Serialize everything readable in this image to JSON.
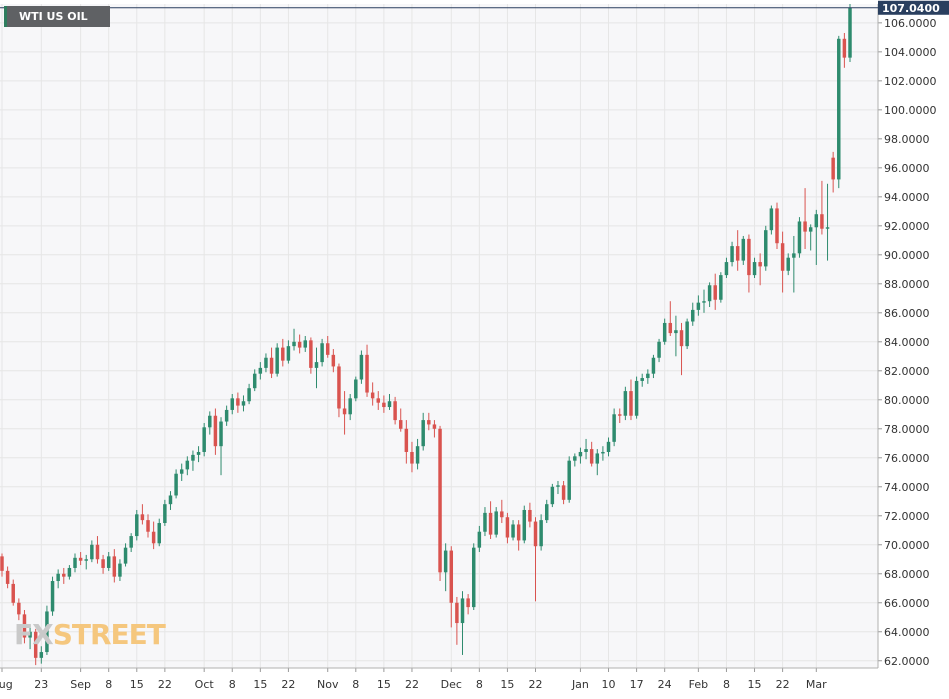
{
  "symbol": "WTI US OIL",
  "logo": {
    "fx": "FX",
    "street": "STREET",
    "text": "FXSTREET"
  },
  "colors": {
    "up": "#2e8b6e",
    "down": "#d9534f",
    "grid": "#e6e6e6",
    "plot_bg": "#f7f7f9",
    "last_price_bg": "#2a3f5f",
    "axis_text": "#333333"
  },
  "chart_data": {
    "type": "candlestick",
    "title": "WTI US OIL",
    "y_axis": {
      "min": 61.5,
      "max": 107.3,
      "ticks": [
        "62.0000",
        "64.0000",
        "66.0000",
        "68.0000",
        "70.0000",
        "72.0000",
        "74.0000",
        "76.0000",
        "78.0000",
        "80.0000",
        "82.0000",
        "84.0000",
        "86.0000",
        "88.0000",
        "90.0000",
        "92.0000",
        "94.0000",
        "96.0000",
        "98.0000",
        "100.0000",
        "102.0000",
        "104.0000",
        "106.0000"
      ]
    },
    "x_labels": [
      {
        "label": "Aug",
        "i": 0
      },
      {
        "label": "23",
        "i": 7
      },
      {
        "label": "Sep",
        "i": 14
      },
      {
        "label": "8",
        "i": 19
      },
      {
        "label": "15",
        "i": 24
      },
      {
        "label": "22",
        "i": 29
      },
      {
        "label": "Oct",
        "i": 36
      },
      {
        "label": "8",
        "i": 41
      },
      {
        "label": "15",
        "i": 46
      },
      {
        "label": "22",
        "i": 51
      },
      {
        "label": "Nov",
        "i": 58
      },
      {
        "label": "8",
        "i": 63
      },
      {
        "label": "15",
        "i": 68
      },
      {
        "label": "22",
        "i": 73
      },
      {
        "label": "Dec",
        "i": 80
      },
      {
        "label": "8",
        "i": 85
      },
      {
        "label": "15",
        "i": 90
      },
      {
        "label": "22",
        "i": 95
      },
      {
        "label": "Jan",
        "i": 103
      },
      {
        "label": "10",
        "i": 108
      },
      {
        "label": "17",
        "i": 113
      },
      {
        "label": "24",
        "i": 118
      },
      {
        "label": "Feb",
        "i": 124
      },
      {
        "label": "8",
        "i": 129
      },
      {
        "label": "15",
        "i": 134
      },
      {
        "label": "22",
        "i": 139
      },
      {
        "label": "Mar",
        "i": 145
      }
    ],
    "last_price": "107.0400",
    "last_value": 107.04,
    "grid": true,
    "candles": [
      [
        69.2,
        69.4,
        67.8,
        68.2
      ],
      [
        68.2,
        68.5,
        67.0,
        67.3
      ],
      [
        67.3,
        67.6,
        65.8,
        66.0
      ],
      [
        66.0,
        66.3,
        64.8,
        65.2
      ],
      [
        65.2,
        65.5,
        63.2,
        63.6
      ],
      [
        63.6,
        64.5,
        62.8,
        64.0
      ],
      [
        64.0,
        64.2,
        61.7,
        62.2
      ],
      [
        62.2,
        63.0,
        61.8,
        62.6
      ],
      [
        62.6,
        65.8,
        62.4,
        65.4
      ],
      [
        65.4,
        67.8,
        65.1,
        67.5
      ],
      [
        67.5,
        68.3,
        67.0,
        68.0
      ],
      [
        68.0,
        68.4,
        67.3,
        67.8
      ],
      [
        67.8,
        68.6,
        67.6,
        68.4
      ],
      [
        68.4,
        69.4,
        68.1,
        69.1
      ],
      [
        69.1,
        69.5,
        68.6,
        68.9
      ],
      [
        68.9,
        69.3,
        68.3,
        69.0
      ],
      [
        69.0,
        70.3,
        68.8,
        70.0
      ],
      [
        70.0,
        70.6,
        68.7,
        69.0
      ],
      [
        69.0,
        69.3,
        68.0,
        68.4
      ],
      [
        68.4,
        69.5,
        68.2,
        69.2
      ],
      [
        69.2,
        69.7,
        67.4,
        67.8
      ],
      [
        67.8,
        69.0,
        67.5,
        68.7
      ],
      [
        68.7,
        70.1,
        68.5,
        69.8
      ],
      [
        69.8,
        70.8,
        69.5,
        70.6
      ],
      [
        70.6,
        72.4,
        70.3,
        72.1
      ],
      [
        72.1,
        72.8,
        71.4,
        71.7
      ],
      [
        71.7,
        72.1,
        70.5,
        70.9
      ],
      [
        70.9,
        71.6,
        69.7,
        70.1
      ],
      [
        70.1,
        71.8,
        69.9,
        71.5
      ],
      [
        71.5,
        73.1,
        71.3,
        72.8
      ],
      [
        72.8,
        73.7,
        72.4,
        73.4
      ],
      [
        73.4,
        75.2,
        73.2,
        74.9
      ],
      [
        74.9,
        75.6,
        74.4,
        75.2
      ],
      [
        75.2,
        76.1,
        74.8,
        75.8
      ],
      [
        75.8,
        76.5,
        75.1,
        76.2
      ],
      [
        76.2,
        76.8,
        75.7,
        76.4
      ],
      [
        76.4,
        78.4,
        76.1,
        78.1
      ],
      [
        78.1,
        79.2,
        77.6,
        78.9
      ],
      [
        78.9,
        79.4,
        76.2,
        76.8
      ],
      [
        76.8,
        78.8,
        74.8,
        78.5
      ],
      [
        78.5,
        79.6,
        78.2,
        79.3
      ],
      [
        79.3,
        80.4,
        79.0,
        80.1
      ],
      [
        80.1,
        80.5,
        79.1,
        79.6
      ],
      [
        79.6,
        80.3,
        79.2,
        79.9
      ],
      [
        79.9,
        81.1,
        79.7,
        80.8
      ],
      [
        80.8,
        82.1,
        80.6,
        81.8
      ],
      [
        81.8,
        82.6,
        81.4,
        82.2
      ],
      [
        82.2,
        83.2,
        81.9,
        82.9
      ],
      [
        82.9,
        83.6,
        81.5,
        81.8
      ],
      [
        81.8,
        83.9,
        81.6,
        83.6
      ],
      [
        83.6,
        84.2,
        82.3,
        82.7
      ],
      [
        82.7,
        84.1,
        82.5,
        83.7
      ],
      [
        83.7,
        84.9,
        83.4,
        84.0
      ],
      [
        84.0,
        84.5,
        83.2,
        83.6
      ],
      [
        83.6,
        84.4,
        83.3,
        84.1
      ],
      [
        84.1,
        84.3,
        81.8,
        82.2
      ],
      [
        82.2,
        83.6,
        80.8,
        82.6
      ],
      [
        82.6,
        84.2,
        82.3,
        83.9
      ],
      [
        83.9,
        84.4,
        82.9,
        83.1
      ],
      [
        83.1,
        83.5,
        81.9,
        82.3
      ],
      [
        82.3,
        82.5,
        78.8,
        79.4
      ],
      [
        79.4,
        80.6,
        77.6,
        79.0
      ],
      [
        79.0,
        80.4,
        78.6,
        80.1
      ],
      [
        80.1,
        81.6,
        79.9,
        81.4
      ],
      [
        81.4,
        83.4,
        81.1,
        83.1
      ],
      [
        83.1,
        83.8,
        80.2,
        80.5
      ],
      [
        80.5,
        81.2,
        79.6,
        80.1
      ],
      [
        80.1,
        80.6,
        79.3,
        79.8
      ],
      [
        79.8,
        80.3,
        79.1,
        79.5
      ],
      [
        79.5,
        80.4,
        79.3,
        79.9
      ],
      [
        79.9,
        80.2,
        78.3,
        78.6
      ],
      [
        78.6,
        79.4,
        77.8,
        78.0
      ],
      [
        78.0,
        78.6,
        75.6,
        76.4
      ],
      [
        76.4,
        77.1,
        75.0,
        75.6
      ],
      [
        75.6,
        77.3,
        75.2,
        76.8
      ],
      [
        76.8,
        79.1,
        76.5,
        78.6
      ],
      [
        78.6,
        79.1,
        77.9,
        78.3
      ],
      [
        78.3,
        78.6,
        77.4,
        78.0
      ],
      [
        78.0,
        78.2,
        67.5,
        68.1
      ],
      [
        68.1,
        70.1,
        66.8,
        69.6
      ],
      [
        69.6,
        69.9,
        64.3,
        66.0
      ],
      [
        66.0,
        66.4,
        63.1,
        64.6
      ],
      [
        64.6,
        66.8,
        62.4,
        66.3
      ],
      [
        66.3,
        66.6,
        65.2,
        65.7
      ],
      [
        65.7,
        70.1,
        65.5,
        69.8
      ],
      [
        69.8,
        71.3,
        69.5,
        70.9
      ],
      [
        70.9,
        72.6,
        70.6,
        72.2
      ],
      [
        72.2,
        73.0,
        70.4,
        70.7
      ],
      [
        70.7,
        72.6,
        70.5,
        72.3
      ],
      [
        72.3,
        73.1,
        71.5,
        71.9
      ],
      [
        71.9,
        72.2,
        70.1,
        70.5
      ],
      [
        70.5,
        71.7,
        70.3,
        71.4
      ],
      [
        71.4,
        71.7,
        69.6,
        70.3
      ],
      [
        70.3,
        72.7,
        70.1,
        72.4
      ],
      [
        72.4,
        72.9,
        71.2,
        71.6
      ],
      [
        71.6,
        71.9,
        66.1,
        69.9
      ],
      [
        69.9,
        72.1,
        69.6,
        71.7
      ],
      [
        71.7,
        73.1,
        71.5,
        72.8
      ],
      [
        72.8,
        74.2,
        72.6,
        74.0
      ],
      [
        74.0,
        74.4,
        73.5,
        74.1
      ],
      [
        74.1,
        74.4,
        72.8,
        73.1
      ],
      [
        73.1,
        76.1,
        72.9,
        75.8
      ],
      [
        75.8,
        76.3,
        75.4,
        76.1
      ],
      [
        76.1,
        76.7,
        75.6,
        76.4
      ],
      [
        76.4,
        77.3,
        75.9,
        76.6
      ],
      [
        76.6,
        77.1,
        75.4,
        75.6
      ],
      [
        75.6,
        76.6,
        74.8,
        76.3
      ],
      [
        76.3,
        76.8,
        75.8,
        76.4
      ],
      [
        76.4,
        77.4,
        76.1,
        77.1
      ],
      [
        77.1,
        79.4,
        76.8,
        79.0
      ],
      [
        79.0,
        79.4,
        78.4,
        78.9
      ],
      [
        78.9,
        80.9,
        78.6,
        80.6
      ],
      [
        80.6,
        81.4,
        78.6,
        78.9
      ],
      [
        78.9,
        81.6,
        78.7,
        81.3
      ],
      [
        81.3,
        81.8,
        80.9,
        81.5
      ],
      [
        81.5,
        82.1,
        81.1,
        81.8
      ],
      [
        81.8,
        83.1,
        81.5,
        82.9
      ],
      [
        82.9,
        84.2,
        82.6,
        84.0
      ],
      [
        84.0,
        85.6,
        83.8,
        85.3
      ],
      [
        85.3,
        86.8,
        84.4,
        84.6
      ],
      [
        84.6,
        85.8,
        83.0,
        84.8
      ],
      [
        84.8,
        85.3,
        81.7,
        83.7
      ],
      [
        83.7,
        85.6,
        83.5,
        85.4
      ],
      [
        85.4,
        86.7,
        85.1,
        86.2
      ],
      [
        86.2,
        87.2,
        85.8,
        86.7
      ],
      [
        86.7,
        87.6,
        86.0,
        86.8
      ],
      [
        86.8,
        88.1,
        86.4,
        87.9
      ],
      [
        87.9,
        88.7,
        86.2,
        86.9
      ],
      [
        86.9,
        88.8,
        86.7,
        88.6
      ],
      [
        88.6,
        89.8,
        88.4,
        89.5
      ],
      [
        89.5,
        90.9,
        89.2,
        90.6
      ],
      [
        90.6,
        91.7,
        88.9,
        89.6
      ],
      [
        89.6,
        91.3,
        89.3,
        91.1
      ],
      [
        91.1,
        91.4,
        87.4,
        88.6
      ],
      [
        88.6,
        89.8,
        88.4,
        89.5
      ],
      [
        89.5,
        90.1,
        87.9,
        89.2
      ],
      [
        89.2,
        92.0,
        88.9,
        91.7
      ],
      [
        91.7,
        93.4,
        91.4,
        93.2
      ],
      [
        93.2,
        93.6,
        90.4,
        90.8
      ],
      [
        90.8,
        91.6,
        87.4,
        88.9
      ],
      [
        88.9,
        90.1,
        88.6,
        89.8
      ],
      [
        89.8,
        91.3,
        87.4,
        90.1
      ],
      [
        90.1,
        92.6,
        89.8,
        92.3
      ],
      [
        92.3,
        94.6,
        90.4,
        91.6
      ],
      [
        91.6,
        92.1,
        90.3,
        91.9
      ],
      [
        91.9,
        93.1,
        89.3,
        92.8
      ],
      [
        92.8,
        95.1,
        91.4,
        91.8
      ],
      [
        91.8,
        94.9,
        89.6,
        91.9
      ],
      [
        96.7,
        97.1,
        94.3,
        95.2
      ],
      [
        95.2,
        105.1,
        94.6,
        104.9
      ],
      [
        104.9,
        105.3,
        102.9,
        103.6
      ],
      [
        103.6,
        107.3,
        103.3,
        107.04
      ]
    ]
  }
}
